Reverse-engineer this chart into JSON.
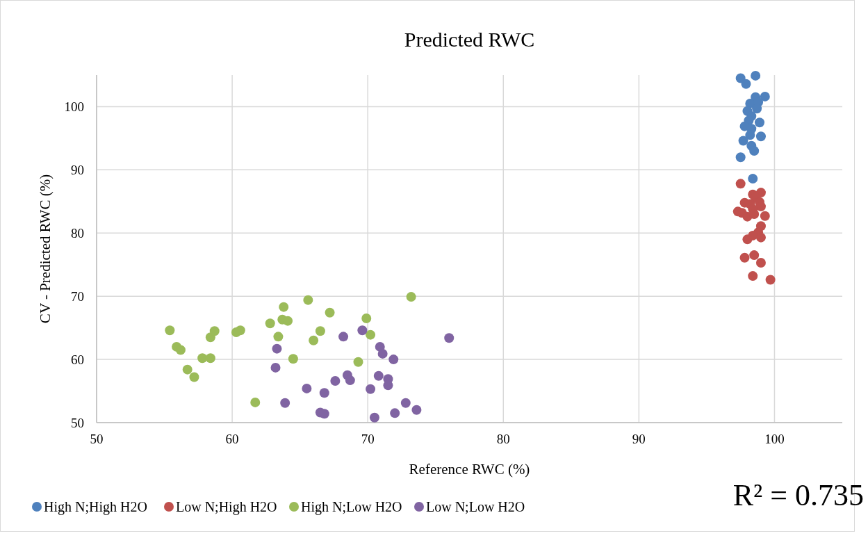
{
  "chart_data": {
    "type": "scatter",
    "title": "Predicted RWC",
    "xlabel": "Reference RWC (%)",
    "ylabel": "CV - Predicted RWC (%)",
    "xlim": [
      50,
      105
    ],
    "xticks": [
      50,
      60,
      70,
      80,
      90,
      100
    ],
    "ylim": [
      50,
      105
    ],
    "yticks": [
      50,
      60,
      70,
      80,
      90,
      100
    ],
    "grid": true,
    "legend": "bottom",
    "marker": "circle",
    "annotations": [
      "R² = 0.735"
    ],
    "series": [
      {
        "name": "High N;High H2O",
        "color": "#4f81bd",
        "x": [
          97.5,
          98.6,
          97.9,
          98.6,
          99.3,
          98.2,
          98.8,
          98.0,
          98.7,
          98.3,
          98.1,
          98.9,
          97.8,
          98.3,
          98.2,
          99.0,
          97.7,
          98.3,
          98.5,
          97.5,
          98.4
        ],
        "values": [
          104.5,
          104.9,
          103.6,
          101.5,
          101.6,
          100.5,
          100.7,
          99.3,
          99.7,
          98.5,
          97.8,
          97.5,
          96.9,
          96.5,
          95.5,
          95.3,
          94.6,
          93.8,
          93.0,
          92.0,
          88.6
        ]
      },
      {
        "name": "Low N;High H2O",
        "color": "#c0504d",
        "x": [
          97.5,
          97.8,
          98.4,
          99.0,
          98.6,
          98.9,
          99.0,
          98.2,
          98.4,
          97.3,
          97.6,
          98.0,
          98.5,
          99.3,
          99.0,
          98.8,
          98.4,
          98.0,
          99.0,
          97.8,
          98.5,
          99.0,
          98.4,
          99.7
        ],
        "values": [
          87.8,
          84.8,
          86.1,
          86.4,
          85.6,
          84.9,
          84.2,
          84.6,
          83.8,
          83.4,
          83.2,
          82.6,
          83.0,
          82.7,
          81.1,
          80.1,
          79.6,
          79.0,
          79.3,
          76.1,
          76.5,
          75.3,
          73.2,
          72.6
        ]
      },
      {
        "name": "High N;Low H2O",
        "color": "#9bbb59",
        "x": [
          55.4,
          55.9,
          56.2,
          56.7,
          57.2,
          57.8,
          58.4,
          58.4,
          58.7,
          60.3,
          60.6,
          61.7,
          62.8,
          63.4,
          63.7,
          63.8,
          64.1,
          64.5,
          65.6,
          66.0,
          66.5,
          67.2,
          69.3,
          69.9,
          70.2,
          73.2
        ],
        "values": [
          64.6,
          62.0,
          61.5,
          58.4,
          57.2,
          60.2,
          60.2,
          63.5,
          64.5,
          64.3,
          64.6,
          53.2,
          65.7,
          63.6,
          66.3,
          68.3,
          66.1,
          60.1,
          69.4,
          63.0,
          64.5,
          67.4,
          59.6,
          66.5,
          63.9,
          69.9
        ]
      },
      {
        "name": "Low N;Low H2O",
        "color": "#8064a2",
        "x": [
          63.3,
          63.2,
          63.9,
          65.5,
          66.5,
          66.8,
          66.8,
          67.6,
          68.2,
          68.5,
          68.7,
          69.6,
          70.2,
          70.5,
          70.8,
          70.9,
          71.1,
          71.5,
          71.5,
          71.9,
          72.0,
          72.8,
          73.6,
          76.0
        ],
        "values": [
          61.7,
          58.7,
          53.1,
          55.4,
          51.6,
          51.4,
          54.7,
          56.6,
          63.6,
          57.5,
          56.7,
          64.6,
          55.3,
          50.8,
          57.4,
          62.0,
          60.9,
          56.9,
          55.9,
          60.0,
          51.5,
          53.1,
          52.0,
          63.4
        ]
      }
    ]
  }
}
